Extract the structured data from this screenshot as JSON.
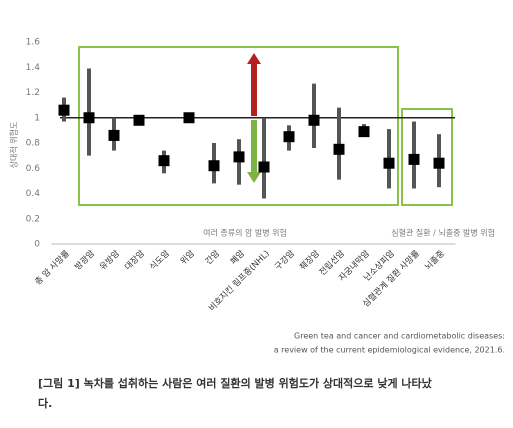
{
  "chart_data": {
    "type": "errorbar",
    "y_label": "상대적 위험도",
    "categories": [
      "총 암 사망률",
      "방광암",
      "유방암",
      "대장암",
      "식도암",
      "위암",
      "간암",
      "폐암",
      "비호지킨 림프종(NHL)",
      "구강암",
      "췌장암",
      "전립선암",
      "자궁내막암",
      "난소상피암",
      "심혈관계 질환 사망률",
      "뇌졸중"
    ],
    "values": [
      1.06,
      1.0,
      0.86,
      0.98,
      0.66,
      1.0,
      0.62,
      0.69,
      0.61,
      0.85,
      0.98,
      0.75,
      0.89,
      0.64,
      0.67,
      0.64
    ],
    "lower": [
      0.97,
      0.7,
      0.74,
      0.95,
      0.56,
      0.99,
      0.48,
      0.47,
      0.36,
      0.74,
      0.76,
      0.51,
      0.86,
      0.44,
      0.44,
      0.45
    ],
    "upper": [
      1.16,
      1.39,
      1.0,
      1.01,
      0.74,
      1.02,
      0.8,
      0.83,
      1.0,
      0.94,
      1.27,
      1.08,
      0.95,
      0.91,
      0.97,
      0.87
    ],
    "color": "#000000",
    "bar_color": "#555555",
    "reference_line": 1,
    "ylim": [
      0,
      1.6
    ],
    "yticks": [
      0,
      0.2,
      0.4,
      0.6,
      0.8,
      1,
      1.2,
      1.4,
      1.6
    ],
    "grid": false,
    "annotations": [
      "여러 종류의 암 발병 위험",
      "심혈관 질환 / 뇌졸중 발병 위험"
    ],
    "source": [
      "Green tea and cancer and cardiometabolic diseases:",
      "a review of the current epidemiological evidence, 2021.6."
    ]
  },
  "caption": "[그림 1] 녹차를 섭취하는 사람은 여러 질환의 발병 위험도가 상대적으로 낮게 나타났다."
}
